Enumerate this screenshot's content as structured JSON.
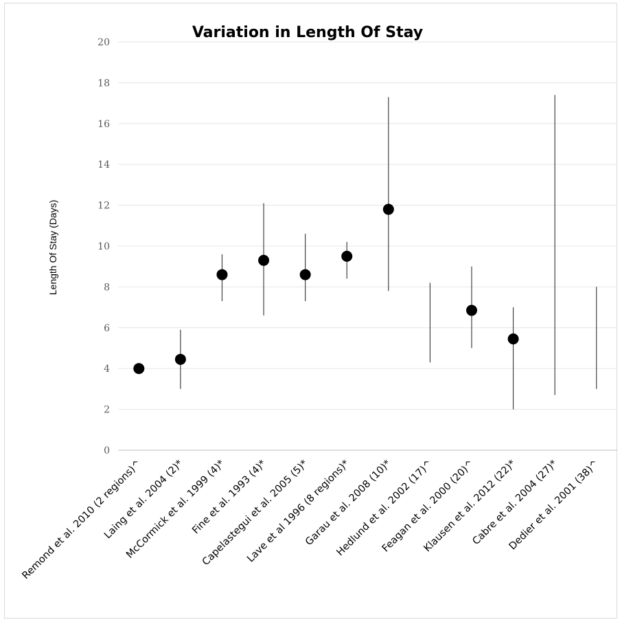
{
  "chart_data": {
    "type": "scatter",
    "title": "Variation in Length Of Stay",
    "xlabel": "",
    "ylabel": "Length Of Stay (Days)",
    "ylim": [
      0,
      20
    ],
    "yticks": [
      0,
      2,
      4,
      6,
      8,
      10,
      12,
      14,
      16,
      18,
      20
    ],
    "grid": true,
    "legend": "none",
    "marker_color": "#000000",
    "range_color": "#404040",
    "categories": [
      "Remond et al. 2010 (2 regions)^",
      "Laing et al. 2004 (2)*",
      "McCormick et al. 1999 (4)*",
      "Fine et al. 1993 (4)*",
      "Capelastegui et al. 2005 (5)*",
      "Lave et al 1996 (8 regions)*",
      "Garau et al. 2008 (10)*",
      "Hedlund et al. 2002 (17)^",
      "Feagan et al. 2000 (20)^",
      "Klausen et al. 2012 (22)*",
      "Cabre et al. 2004 (27)*",
      "Dedier et al. 2001 (38)^"
    ],
    "values": [
      4.0,
      4.45,
      8.6,
      9.3,
      8.6,
      9.5,
      11.8,
      null,
      6.85,
      5.45,
      null,
      null
    ],
    "range_low": [
      null,
      3.0,
      7.3,
      6.6,
      7.3,
      8.4,
      7.8,
      4.3,
      5.0,
      2.0,
      2.7,
      3.0
    ],
    "range_high": [
      null,
      5.9,
      9.6,
      12.1,
      10.6,
      10.2,
      17.3,
      8.2,
      9.0,
      7.0,
      17.4,
      8.0
    ]
  }
}
